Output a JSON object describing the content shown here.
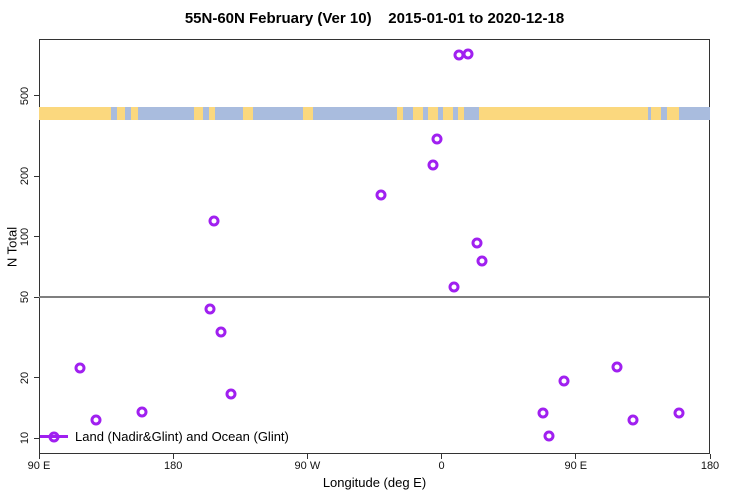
{
  "figure": {
    "title": "55N-60N February (Ver 10)    2015-01-01 to 2020-12-18",
    "background_color": "#FFFFFF"
  },
  "chart_data": {
    "type": "scatter",
    "title": "55N-60N February (Ver 10)    2015-01-01 to 2020-12-18",
    "xlabel": "Longitude (deg E)",
    "ylabel": "N Total",
    "x_axis": {
      "range": [
        90,
        540
      ],
      "note": "longitude wraps eastward: 90E -> 180 -> 90W -> 0 -> 90E -> 180",
      "ticks": [
        {
          "value": 90,
          "label": "90 E"
        },
        {
          "value": 180,
          "label": "180"
        },
        {
          "value": 270,
          "label": "90 W"
        },
        {
          "value": 360,
          "label": "0"
        },
        {
          "value": 450,
          "label": "90 E"
        },
        {
          "value": 540,
          "label": "180"
        }
      ]
    },
    "y_axis": {
      "scale": "log10",
      "range": [
        8.3,
        960
      ],
      "ticks": [
        {
          "value": 10,
          "label": "10"
        },
        {
          "value": 20,
          "label": "20"
        },
        {
          "value": 50,
          "label": "50"
        },
        {
          "value": 100,
          "label": "100"
        },
        {
          "value": 200,
          "label": "200"
        },
        {
          "value": 500,
          "label": "500"
        }
      ]
    },
    "reference_line": {
      "y": 50,
      "color": "#7F7F7F"
    },
    "legend": {
      "label": "Land (Nadir&Glint) and Ocean (Glint)",
      "position": "bottom-left"
    },
    "series": [
      {
        "name": "Land (Nadir&Glint) and Ocean (Glint)",
        "marker": "open-circle",
        "color": "#A020F0",
        "points": [
          [
            372.0,
            800
          ],
          [
            377.7,
            810
          ],
          [
            356.7,
            304
          ],
          [
            354.5,
            227
          ],
          [
            319.4,
            161
          ],
          [
            207.2,
            120
          ],
          [
            384.0,
            93
          ],
          [
            387.3,
            76
          ],
          [
            368.5,
            56
          ],
          [
            204.5,
            44
          ],
          [
            212.3,
            33.5
          ],
          [
            117.7,
            22.4
          ],
          [
            218.6,
            16.5
          ],
          [
            128.4,
            12.3
          ],
          [
            159.3,
            13.5
          ],
          [
            477.7,
            22.6
          ],
          [
            442.3,
            19.2
          ],
          [
            427.8,
            13.4
          ],
          [
            432.3,
            10.3
          ],
          [
            488.6,
            12.3
          ],
          [
            519.2,
            13.4
          ]
        ]
      }
    ],
    "map_band": {
      "description": "coastline strip for 55N-60N latitude band",
      "ocean_color": "#A9BCDE",
      "land_color": "#FBD87E",
      "n_range": [
        380,
        440
      ],
      "land_segments_deg": [
        [
          90,
          138.3
        ],
        [
          142.3,
          147.7
        ],
        [
          151.7,
          156.4
        ],
        [
          193.9,
          200.0
        ],
        [
          204.0,
          208.0
        ],
        [
          226.8,
          233.5
        ],
        [
          267.1,
          273.8
        ],
        [
          330.1,
          334.1
        ],
        [
          340.8,
          347.5
        ],
        [
          350.9,
          357.6
        ],
        [
          361.0,
          367.7
        ],
        [
          371.0,
          375.0
        ],
        [
          385.1,
          498.4
        ],
        [
          500.4,
          507.1
        ],
        [
          511.2,
          519.2
        ]
      ]
    }
  }
}
